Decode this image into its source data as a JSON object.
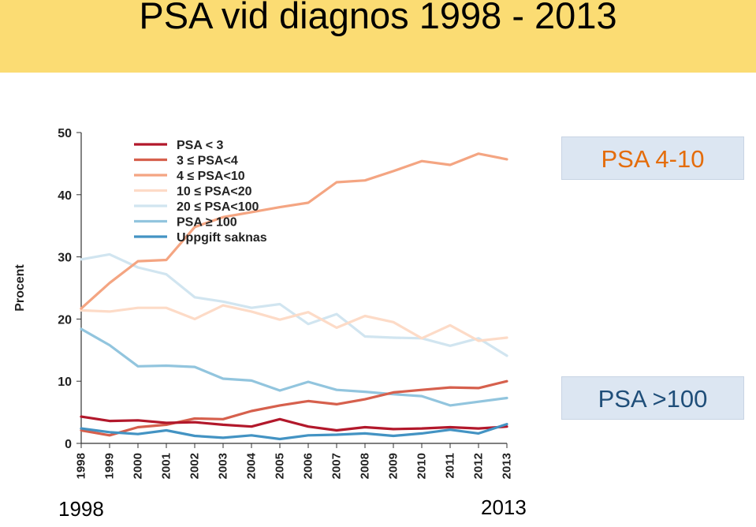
{
  "title": "PSA vid diagnos 1998 - 2013",
  "callouts": {
    "top": "PSA 4-10",
    "bottom": "PSA >100"
  },
  "year_labels": {
    "start": "1998",
    "end": "2013"
  },
  "chart_data": {
    "type": "line",
    "ylabel": "Procent",
    "ylim": [
      0,
      50
    ],
    "yticks": [
      0,
      10,
      20,
      30,
      40,
      50
    ],
    "categories": [
      "1998",
      "1999",
      "2000",
      "2001",
      "2002",
      "2003",
      "2004",
      "2005",
      "2006",
      "2007",
      "2008",
      "2009",
      "2010",
      "2011",
      "2012",
      "2013"
    ],
    "legend_position": "top-left",
    "grid": false,
    "series": [
      {
        "name": "PSA < 3",
        "color": "#b2182b",
        "values": [
          4.3,
          3.6,
          3.7,
          3.3,
          3.4,
          3.0,
          2.7,
          3.9,
          2.7,
          2.1,
          2.6,
          2.3,
          2.4,
          2.6,
          2.4,
          2.7
        ]
      },
      {
        "name": "3 ≤ PSA<4",
        "color": "#d6604d",
        "values": [
          2.1,
          1.3,
          2.6,
          3.0,
          4.0,
          3.9,
          5.2,
          6.1,
          6.8,
          6.3,
          7.1,
          8.2,
          8.6,
          9.0,
          8.9,
          10.0
        ]
      },
      {
        "name": "4 ≤ PSA<10",
        "color": "#f4a582",
        "values": [
          21.7,
          25.8,
          29.3,
          29.5,
          34.8,
          36.4,
          37.2,
          38.0,
          38.7,
          42.0,
          42.3,
          43.8,
          45.4,
          44.8,
          46.6,
          45.7
        ]
      },
      {
        "name": "10 ≤ PSA<20",
        "color": "#fddbc7",
        "values": [
          21.4,
          21.2,
          21.8,
          21.8,
          20.0,
          22.2,
          21.2,
          19.9,
          21.1,
          18.6,
          20.5,
          19.5,
          16.9,
          19.0,
          16.5,
          17.0
        ]
      },
      {
        "name": "20 ≤ PSA<100",
        "color": "#d1e5f0",
        "values": [
          29.6,
          30.4,
          28.3,
          27.2,
          23.5,
          22.8,
          21.8,
          22.4,
          19.2,
          20.8,
          17.2,
          17.0,
          16.9,
          15.7,
          16.9,
          14.1
        ]
      },
      {
        "name": "PSA ≥ 100",
        "color": "#92c5de",
        "values": [
          18.4,
          15.8,
          12.4,
          12.5,
          12.3,
          10.4,
          10.1,
          8.5,
          9.9,
          8.6,
          8.3,
          7.9,
          7.6,
          6.1,
          6.7,
          7.3
        ]
      },
      {
        "name": "Uppgift saknas",
        "color": "#4393c3",
        "values": [
          2.4,
          1.8,
          1.5,
          2.1,
          1.2,
          0.9,
          1.3,
          0.7,
          1.3,
          1.4,
          1.6,
          1.2,
          1.6,
          2.2,
          1.6,
          3.1
        ]
      }
    ]
  }
}
